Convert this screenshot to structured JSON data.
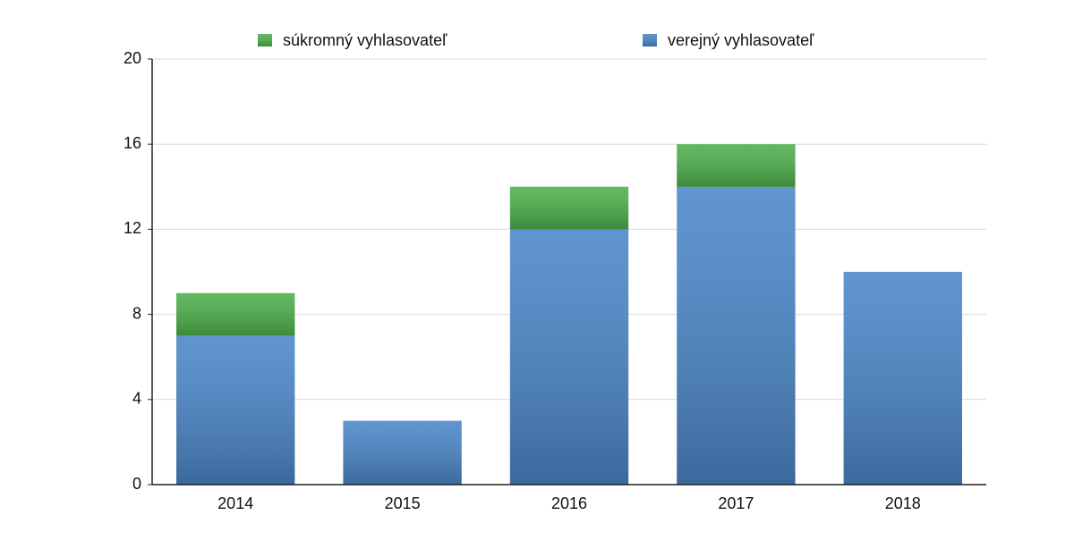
{
  "chart_data": {
    "type": "stacked_bar",
    "categories": [
      "2014",
      "2015",
      "2016",
      "2017",
      "2018"
    ],
    "series": [
      {
        "name": "súkromný vyhlasovateľ",
        "color": "#4cb04a",
        "values": [
          2,
          0,
          2,
          2,
          0
        ]
      },
      {
        "name": "verejný vyhlasovateľ",
        "color": "#4a86c8",
        "values": [
          7,
          3,
          12,
          14,
          10
        ]
      }
    ],
    "ylim": [
      0,
      20
    ],
    "yticks": [
      0,
      4,
      8,
      12,
      16,
      20
    ],
    "grid": true,
    "legend": "top"
  }
}
